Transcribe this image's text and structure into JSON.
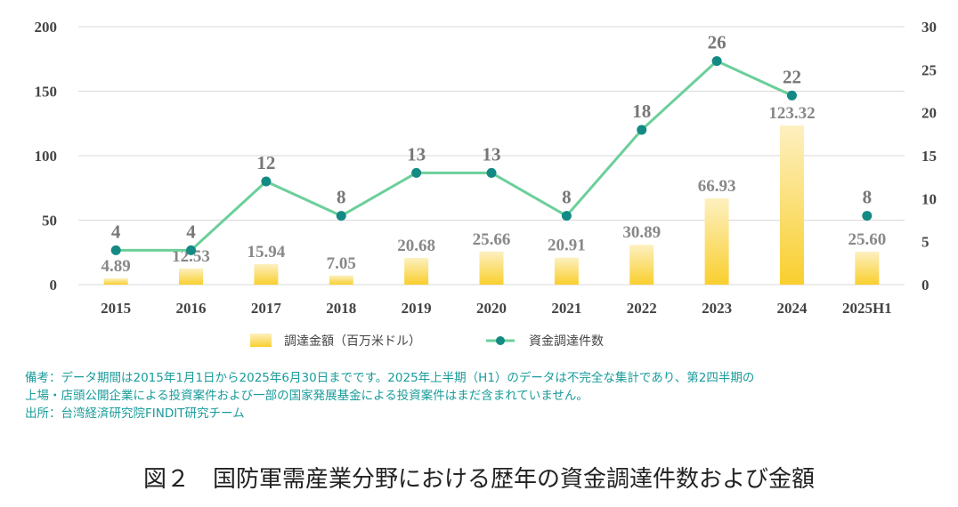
{
  "chart_data": {
    "type": "bar+line",
    "categories": [
      "2015",
      "2016",
      "2017",
      "2018",
      "2019",
      "2020",
      "2021",
      "2022",
      "2023",
      "2024",
      "2025H1"
    ],
    "bar_series": {
      "name": "調達金額（百万米ドル）",
      "values": [
        4.89,
        12.53,
        15.94,
        7.05,
        20.68,
        25.66,
        20.91,
        30.89,
        66.93,
        123.32,
        25.6
      ],
      "labels": [
        "4.89",
        "12.53",
        "15.94",
        "7.05",
        "20.68",
        "25.66",
        "20.91",
        "30.89",
        "66.93",
        "123.32",
        "25.60"
      ],
      "axis": "left",
      "color": "#f7d44a"
    },
    "line_series": {
      "name": "資金調達件数",
      "values": [
        4,
        4,
        12,
        8,
        13,
        13,
        8,
        18,
        26,
        22,
        8
      ],
      "labels": [
        "4",
        "4",
        "12",
        "8",
        "13",
        "13",
        "8",
        "18",
        "26",
        "22",
        "8"
      ],
      "axis": "right",
      "line_color": "#6ccf9a",
      "marker_color": "#138a84",
      "disconnected_last_point": true
    },
    "left_axis": {
      "ylim": [
        0,
        200
      ],
      "ticks": [
        "0",
        "50",
        "100",
        "150",
        "200"
      ]
    },
    "right_axis": {
      "ylim": [
        0,
        30
      ],
      "ticks": [
        "0",
        "5",
        "10",
        "15",
        "20",
        "25",
        "30"
      ]
    },
    "grid": "horizontal",
    "legend_position": "bottom"
  },
  "notes": {
    "line1": "備考：データ期間は2015年1月1日から2025年6月30日までです。2025年上半期（H1）のデータは不完全な集計であり、第2四半期の",
    "line2": "上場・店頭公開企業による投資案件および一部の国家発展基金による投資案件はまだ含まれていません。",
    "line3": "出所：台湾経済研究院FINDIT研究チーム"
  },
  "caption": "図２　国防軍需産業分野における歴年の資金調達件数および金額"
}
